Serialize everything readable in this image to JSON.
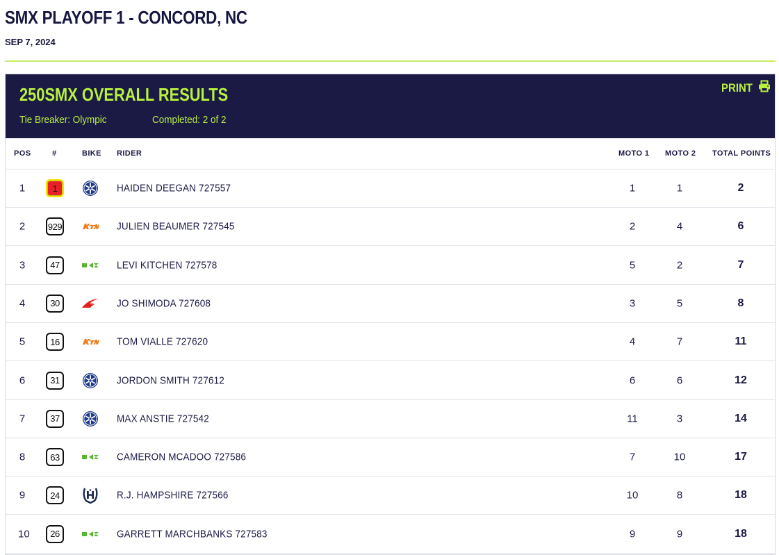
{
  "event": {
    "title": "SMX PLAYOFF 1 - CONCORD, NC",
    "date": "SEP 7, 2024"
  },
  "results": {
    "title": "250SMX OVERALL RESULTS",
    "tie_breaker": "Tie Breaker: Olympic",
    "completed": "Completed: 2 of 2",
    "print_label": "PRINT",
    "columns": {
      "pos": "POS",
      "num": "#",
      "bike": "BIKE",
      "rider": "RIDER",
      "moto1": "MOTO 1",
      "moto2": "MOTO 2",
      "total": "TOTAL POINTS"
    },
    "rows": [
      {
        "pos": "1",
        "num": "1",
        "bike": "yamaha-logo",
        "rider": "HAIDEN DEEGAN 727557",
        "moto1": "1",
        "moto2": "1",
        "total": "2"
      },
      {
        "pos": "2",
        "num": "929",
        "bike": "ktm-logo",
        "rider": "JULIEN BEAUMER 727545",
        "moto1": "2",
        "moto2": "4",
        "total": "6"
      },
      {
        "pos": "3",
        "num": "47",
        "bike": "kawasaki-logo",
        "rider": "LEVI KITCHEN 727578",
        "moto1": "5",
        "moto2": "2",
        "total": "7"
      },
      {
        "pos": "4",
        "num": "30",
        "bike": "honda-logo",
        "rider": "JO SHIMODA 727608",
        "moto1": "3",
        "moto2": "5",
        "total": "8"
      },
      {
        "pos": "5",
        "num": "16",
        "bike": "ktm-logo",
        "rider": "TOM VIALLE 727620",
        "moto1": "4",
        "moto2": "7",
        "total": "11"
      },
      {
        "pos": "6",
        "num": "31",
        "bike": "yamaha-logo",
        "rider": "JORDON SMITH 727612",
        "moto1": "6",
        "moto2": "6",
        "total": "12"
      },
      {
        "pos": "7",
        "num": "37",
        "bike": "yamaha-logo",
        "rider": "MAX ANSTIE 727542",
        "moto1": "11",
        "moto2": "3",
        "total": "14"
      },
      {
        "pos": "8",
        "num": "63",
        "bike": "kawasaki-logo",
        "rider": "CAMERON MCADOO 727586",
        "moto1": "7",
        "moto2": "10",
        "total": "17"
      },
      {
        "pos": "9",
        "num": "24",
        "bike": "husqvarna-logo",
        "rider": "R.J. HAMPSHIRE 727566",
        "moto1": "10",
        "moto2": "8",
        "total": "18"
      },
      {
        "pos": "10",
        "num": "26",
        "bike": "kawasaki-logo",
        "rider": "GARRETT MARCHBANKS 727583",
        "moto1": "9",
        "moto2": "9",
        "total": "18"
      }
    ]
  },
  "colors": {
    "header_bg": "#1b1a45",
    "accent": "#b8f23d",
    "leader_plate": "#e8202a",
    "leader_border": "#f1e400"
  }
}
